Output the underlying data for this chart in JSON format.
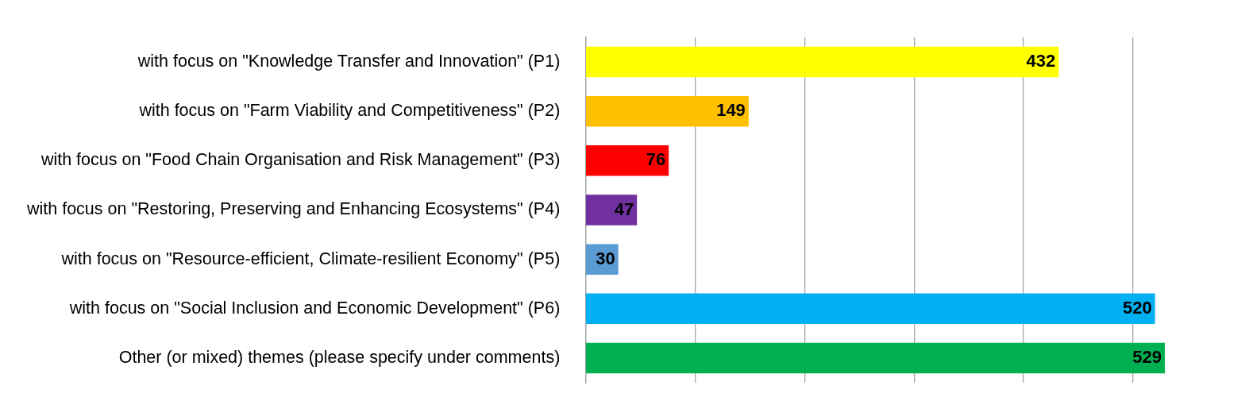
{
  "chart_data": {
    "type": "bar",
    "orientation": "horizontal",
    "categories": [
      "with focus on \"Knowledge Transfer and Innovation\" (P1)",
      "with focus on \"Farm Viability and Competitiveness\" (P2)",
      "with focus on \"Food Chain Organisation and Risk Management\" (P3)",
      "with focus on \"Restoring, Preserving and Enhancing Ecosystems\" (P4)",
      "with focus on \"Resource-efficient, Climate-resilient Economy\" (P5)",
      "with focus on \"Social Inclusion and Economic Development\" (P6)",
      "Other (or mixed) themes (please specify under comments)"
    ],
    "values": [
      432,
      149,
      76,
      47,
      30,
      520,
      529
    ],
    "colors": [
      "#ffff00",
      "#ffc000",
      "#ff0000",
      "#7030a0",
      "#5b9bd5",
      "#00b0f0",
      "#00b050"
    ],
    "xticks": [
      {
        "value": 0,
        "label": null
      },
      {
        "value": 100,
        "label": null
      },
      {
        "value": 200,
        "label": null
      },
      {
        "value": 300,
        "label": null
      },
      {
        "value": 400,
        "label": null
      },
      {
        "value": 500,
        "label": null
      }
    ],
    "grid": "x",
    "data_labels": true,
    "legend": false,
    "tick_labels": "y"
  }
}
